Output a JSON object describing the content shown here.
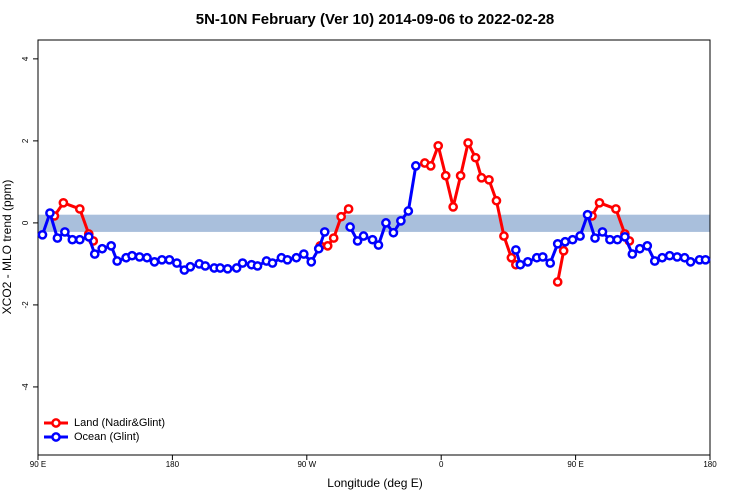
{
  "chart_data": {
    "type": "line",
    "title": "5N-10N February (Ver 10)   2014-09-06 to 2022-02-28",
    "xlabel": "Longitude (deg E)",
    "ylabel": "XCO2 - MLO trend (ppm)",
    "xlim": [
      90,
      540
    ],
    "ylim": [
      -5.66,
      4.46
    ],
    "xticks": [
      {
        "value": 90,
        "label": "90 E"
      },
      180,
      {
        "value": 270,
        "label": "90 W"
      },
      {
        "value": 360,
        "label": "0"
      },
      {
        "value": 450,
        "label": "90 E"
      },
      {
        "value": 540,
        "label": "180"
      }
    ],
    "yticks": [
      4,
      2,
      0,
      -2,
      -4
    ],
    "band": [
      -0.22,
      0.2
    ],
    "band_color": "#a9bfdc",
    "legend": "bottom-left",
    "series": [
      {
        "name": "Land (Nadir&Glint)",
        "color": "#ff0000",
        "x": [
          101,
          107,
          118,
          124,
          127,
          200,
          279,
          284,
          288,
          293,
          298,
          330,
          349,
          353,
          358,
          363,
          368,
          373,
          378,
          383,
          387,
          392,
          397,
          402,
          407,
          410,
          425,
          438,
          442,
          450,
          461,
          466,
          477,
          483,
          486
        ],
        "values": [
          0.17,
          0.49,
          0.34,
          -0.27,
          -0.44,
          null,
          -0.56,
          -0.56,
          -0.37,
          0.15,
          0.34,
          null,
          1.46,
          1.39,
          1.88,
          1.15,
          0.39,
          1.15,
          1.95,
          1.59,
          1.1,
          1.05,
          0.54,
          -0.32,
          -0.85,
          -1.02,
          null,
          -1.44,
          -0.68,
          null,
          0.17,
          0.49,
          0.34,
          -0.27,
          -0.44
        ]
      },
      {
        "name": "Ocean (Glint)",
        "color": "#0000ff",
        "x": [
          93,
          98,
          103,
          108,
          113,
          118,
          124,
          128,
          133,
          139,
          143,
          149,
          153,
          158,
          163,
          168,
          173,
          178,
          183,
          188,
          192,
          198,
          202,
          208,
          212,
          217,
          223,
          227,
          233,
          237,
          243,
          247,
          253,
          257,
          263,
          268,
          273,
          278,
          282,
          290,
          299,
          304,
          308,
          314,
          318,
          323,
          328,
          333,
          338,
          343,
          380,
          410,
          413,
          418,
          424,
          428,
          433,
          438,
          443,
          448,
          453,
          458,
          463,
          468,
          473,
          478,
          483,
          488,
          493,
          498,
          503,
          508,
          513,
          518,
          523,
          527,
          533,
          537
        ],
        "values": [
          -0.29,
          0.24,
          -0.37,
          -0.22,
          -0.41,
          -0.41,
          -0.34,
          -0.76,
          -0.63,
          -0.56,
          -0.93,
          -0.85,
          -0.8,
          -0.83,
          -0.85,
          -0.95,
          -0.9,
          -0.9,
          -0.98,
          -1.15,
          -1.07,
          -1.0,
          -1.05,
          -1.1,
          -1.1,
          -1.12,
          -1.1,
          -0.98,
          -1.02,
          -1.05,
          -0.93,
          -0.98,
          -0.85,
          -0.9,
          -0.85,
          -0.76,
          -0.95,
          -0.63,
          -0.22,
          null,
          -0.1,
          -0.44,
          -0.32,
          -0.41,
          -0.54,
          0,
          -0.24,
          0.05,
          0.29,
          1.39,
          null,
          -0.66,
          -1.02,
          -0.95,
          -0.85,
          -0.83,
          -0.98,
          -0.51,
          -0.46,
          -0.41,
          -0.32,
          0.2,
          -0.37,
          -0.22,
          -0.41,
          -0.41,
          -0.34,
          -0.76,
          -0.63,
          -0.56,
          -0.93,
          -0.85,
          -0.8,
          -0.83,
          -0.85,
          -0.95,
          -0.9,
          -0.9
        ]
      }
    ]
  }
}
